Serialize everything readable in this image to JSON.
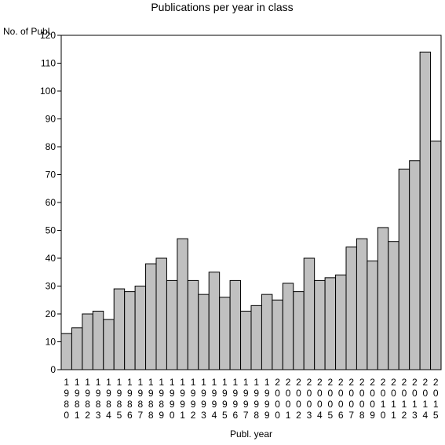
{
  "chart_data": {
    "type": "bar",
    "title": "Publications per year in class",
    "ylabel": "No. of Publ.",
    "xlabel": "Publ. year",
    "ylim": [
      0,
      120
    ],
    "yticks": [
      0,
      10,
      20,
      30,
      40,
      50,
      60,
      70,
      80,
      90,
      100,
      110,
      120
    ],
    "categories": [
      "1980",
      "1981",
      "1982",
      "1983",
      "1984",
      "1985",
      "1986",
      "1987",
      "1988",
      "1989",
      "1990",
      "1991",
      "1992",
      "1993",
      "1994",
      "1995",
      "1996",
      "1997",
      "1998",
      "1999",
      "2000",
      "2001",
      "2002",
      "2003",
      "2004",
      "2005",
      "2006",
      "2007",
      "2008",
      "2009",
      "2010",
      "2011",
      "2012",
      "2013",
      "2014",
      "2015"
    ],
    "values": [
      13,
      15,
      20,
      21,
      18,
      29,
      28,
      30,
      38,
      40,
      32,
      47,
      32,
      27,
      35,
      26,
      32,
      21,
      23,
      27,
      25,
      31,
      28,
      40,
      32,
      33,
      34,
      44,
      47,
      39,
      51,
      46,
      72,
      75,
      114,
      82
    ],
    "bar_color": "#c0c0c0",
    "bar_edge_color": "#000000",
    "grid": false
  }
}
